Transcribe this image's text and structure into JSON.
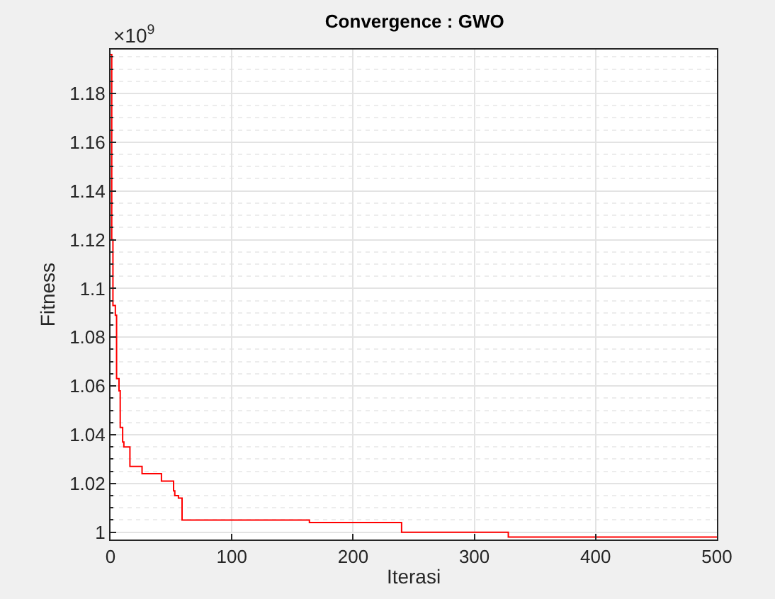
{
  "chart_data": {
    "type": "step",
    "title": "Convergence : GWO",
    "xlabel": "Iterasi",
    "ylabel": "Fitness",
    "annotations": [
      "×10$^{9}$"
    ],
    "x": [
      0,
      1,
      2,
      4,
      5,
      7,
      8,
      10,
      11,
      16,
      26,
      42,
      52,
      53,
      56,
      59,
      164,
      240,
      328,
      500
    ],
    "series": [
      {
        "color": "#ff0000",
        "values": [
          1.196,
          1.12,
          1.093,
          1.089,
          1.063,
          1.058,
          1.043,
          1.037,
          1.035,
          1.027,
          1.024,
          1.021,
          1.017,
          1.015,
          1.014,
          1.005,
          1.004,
          1.0,
          0.998,
          0.998
        ]
      }
    ],
    "xlim": [
      0,
      500
    ],
    "xticks": [
      0,
      100,
      200,
      300,
      400,
      500
    ],
    "ylim": [
      0.997,
      1.198
    ],
    "yticks": [
      1,
      1.02,
      1.04,
      1.06,
      1.08,
      1.1,
      1.12,
      1.14,
      1.16,
      1.18
    ],
    "grid": true,
    "marker": "none",
    "line_style": "solid"
  }
}
